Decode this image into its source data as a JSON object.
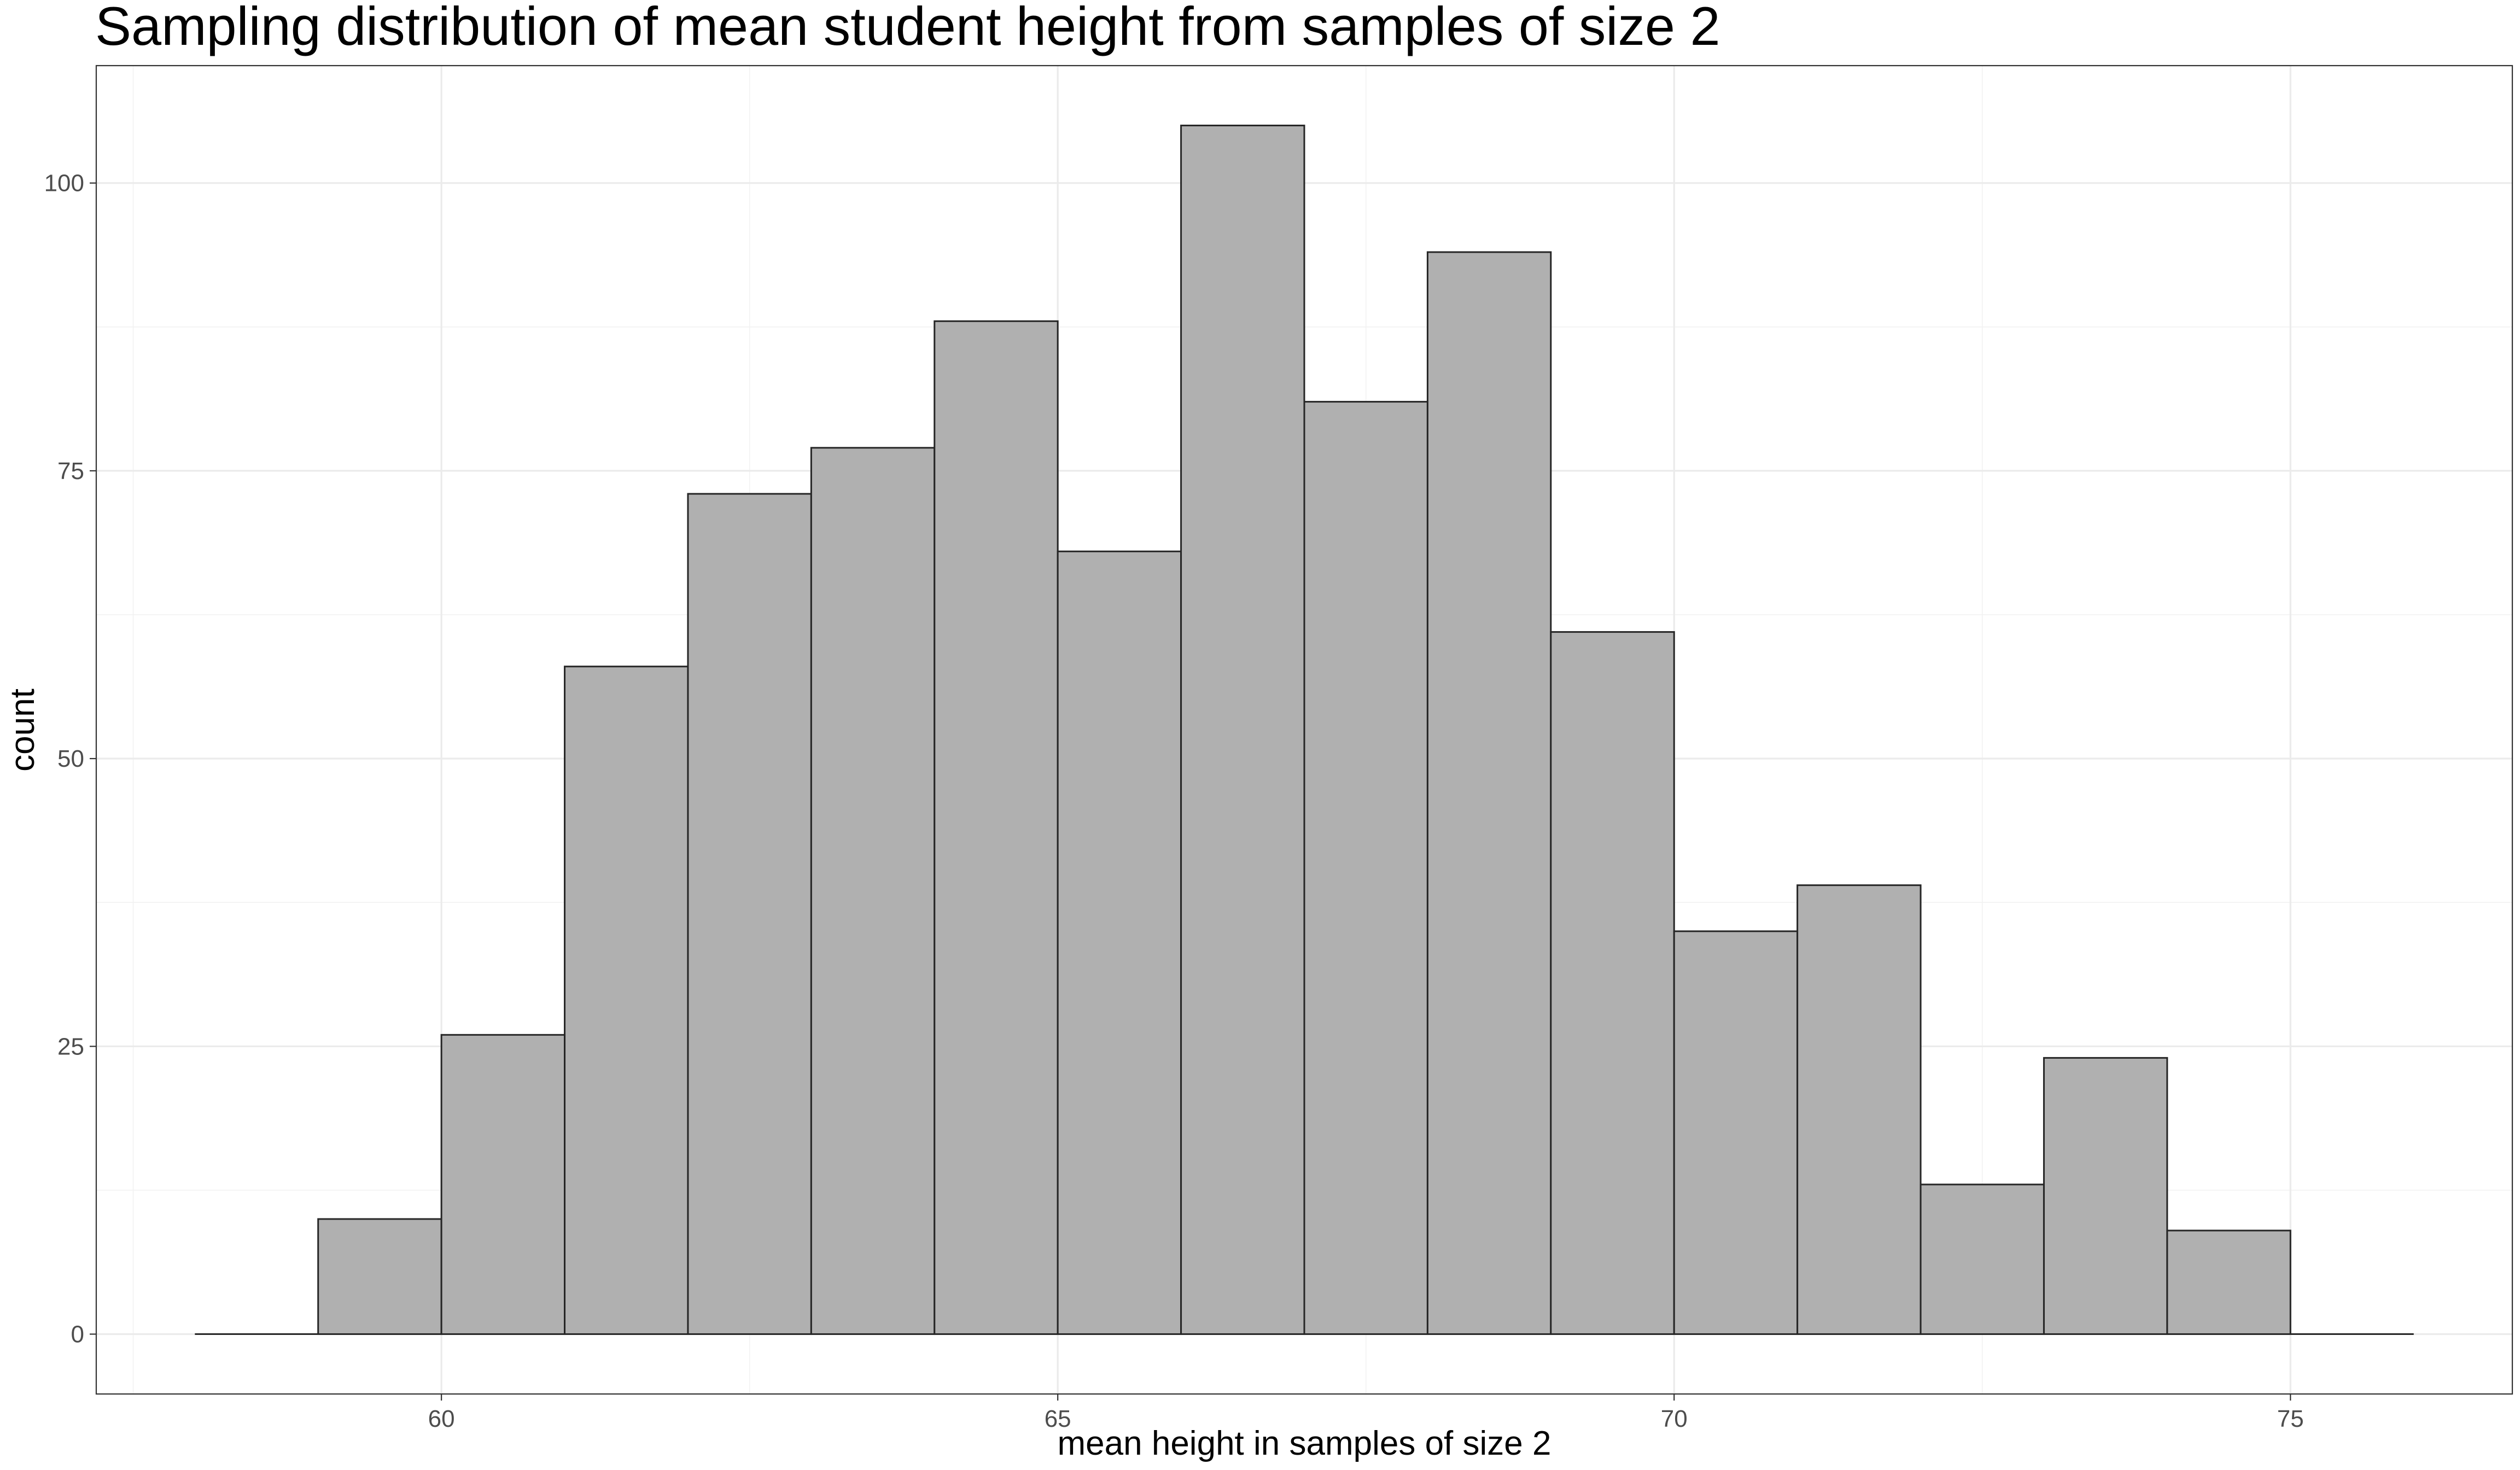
{
  "chart_data": {
    "type": "bar",
    "subtype": "histogram",
    "title": "Sampling distribution of mean student height from samples of size 2",
    "xlabel": "mean height in samples of size 2",
    "ylabel": "count",
    "xlim": [
      57.2,
      76.8
    ],
    "ylim": [
      -5.2,
      110.2
    ],
    "x_ticks": [
      60,
      65,
      70,
      75
    ],
    "y_ticks": [
      0,
      25,
      50,
      75,
      100
    ],
    "bins": [
      {
        "x0": 58,
        "x1": 59,
        "count": 0
      },
      {
        "x0": 59,
        "x1": 60,
        "count": 10
      },
      {
        "x0": 60,
        "x1": 61,
        "count": 26
      },
      {
        "x0": 61,
        "x1": 62,
        "count": 58
      },
      {
        "x0": 62,
        "x1": 63,
        "count": 73
      },
      {
        "x0": 63,
        "x1": 64,
        "count": 77
      },
      {
        "x0": 64,
        "x1": 65,
        "count": 88
      },
      {
        "x0": 65,
        "x1": 66,
        "count": 68
      },
      {
        "x0": 66,
        "x1": 67,
        "count": 105
      },
      {
        "x0": 67,
        "x1": 68,
        "count": 81
      },
      {
        "x0": 68,
        "x1": 69,
        "count": 94
      },
      {
        "x0": 69,
        "x1": 70,
        "count": 61
      },
      {
        "x0": 70,
        "x1": 71,
        "count": 35
      },
      {
        "x0": 71,
        "x1": 72,
        "count": 39
      },
      {
        "x0": 72,
        "x1": 73,
        "count": 13
      },
      {
        "x0": 73,
        "x1": 74,
        "count": 24
      },
      {
        "x0": 74,
        "x1": 75,
        "count": 9
      },
      {
        "x0": 75,
        "x1": 76,
        "count": 0
      }
    ],
    "grid": true,
    "legend": "none",
    "colors": {
      "bar_fill": "#b0b0b0",
      "bar_outline": "#262626",
      "background": "#ffffff",
      "grid": "#ebebeb"
    }
  }
}
